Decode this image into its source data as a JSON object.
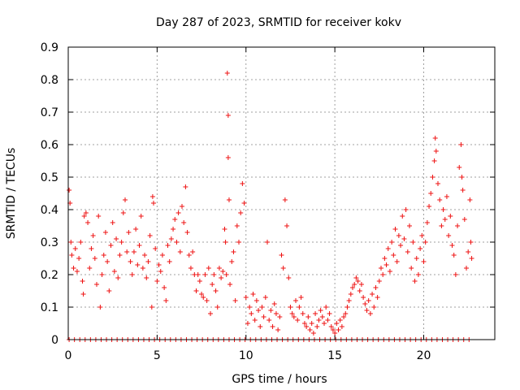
{
  "chart_data": {
    "type": "scatter",
    "title": "Day 287 of 2023, SRMTID for receiver kokv",
    "xlabel": "GPS time / hours",
    "ylabel": "SRMTID / TECUs",
    "xlim": [
      0,
      24
    ],
    "ylim": [
      0,
      0.9
    ],
    "xticks": [
      0,
      5,
      10,
      15,
      20
    ],
    "yticks": [
      0,
      0.1,
      0.2,
      0.3,
      0.4,
      0.5,
      0.6,
      0.7,
      0.8,
      0.9
    ],
    "xtick_labels": [
      "0",
      "5",
      "10",
      "15",
      "20"
    ],
    "ytick_labels": [
      "0",
      "0.1",
      "0.2",
      "0.3",
      "0.4",
      "0.5",
      "0.6",
      "0.7",
      "0.8",
      "0.9"
    ],
    "grid": true,
    "marker": "+",
    "color": "#ee1111",
    "series": [
      {
        "name": "SRMTID",
        "points": [
          [
            0.05,
            0.46
          ],
          [
            0.1,
            0.42
          ],
          [
            0.15,
            0.3
          ],
          [
            0.2,
            0.26
          ],
          [
            0.3,
            0.22
          ],
          [
            0.4,
            0.28
          ],
          [
            0.5,
            0.21
          ],
          [
            0.6,
            0.25
          ],
          [
            0.7,
            0.3
          ],
          [
            0.8,
            0.18
          ],
          [
            0.85,
            0.14
          ],
          [
            0.9,
            0.38
          ],
          [
            1.0,
            0.39
          ],
          [
            1.1,
            0.36
          ],
          [
            1.2,
            0.22
          ],
          [
            1.3,
            0.28
          ],
          [
            1.4,
            0.32
          ],
          [
            1.5,
            0.25
          ],
          [
            1.6,
            0.17
          ],
          [
            1.7,
            0.38
          ],
          [
            1.8,
            0.1
          ],
          [
            1.9,
            0.2
          ],
          [
            2.0,
            0.26
          ],
          [
            2.1,
            0.33
          ],
          [
            2.2,
            0.24
          ],
          [
            2.3,
            0.15
          ],
          [
            2.4,
            0.29
          ],
          [
            2.5,
            0.36
          ],
          [
            2.6,
            0.21
          ],
          [
            2.7,
            0.31
          ],
          [
            2.8,
            0.19
          ],
          [
            2.9,
            0.26
          ],
          [
            3.0,
            0.3
          ],
          [
            3.1,
            0.39
          ],
          [
            3.2,
            0.43
          ],
          [
            3.3,
            0.27
          ],
          [
            3.4,
            0.33
          ],
          [
            3.5,
            0.24
          ],
          [
            3.6,
            0.2
          ],
          [
            3.7,
            0.27
          ],
          [
            3.8,
            0.34
          ],
          [
            3.9,
            0.23
          ],
          [
            4.0,
            0.29
          ],
          [
            4.1,
            0.38
          ],
          [
            4.2,
            0.22
          ],
          [
            4.3,
            0.26
          ],
          [
            4.4,
            0.19
          ],
          [
            4.5,
            0.24
          ],
          [
            4.6,
            0.32
          ],
          [
            4.7,
            0.1
          ],
          [
            4.75,
            0.44
          ],
          [
            4.8,
            0.42
          ],
          [
            4.9,
            0.28
          ],
          [
            5.0,
            0.18
          ],
          [
            5.1,
            0.23
          ],
          [
            5.2,
            0.21
          ],
          [
            5.3,
            0.26
          ],
          [
            5.4,
            0.16
          ],
          [
            5.5,
            0.12
          ],
          [
            5.6,
            0.29
          ],
          [
            5.7,
            0.24
          ],
          [
            5.8,
            0.31
          ],
          [
            5.9,
            0.34
          ],
          [
            6.0,
            0.37
          ],
          [
            6.1,
            0.3
          ],
          [
            6.2,
            0.39
          ],
          [
            6.3,
            0.27
          ],
          [
            6.4,
            0.41
          ],
          [
            6.5,
            0.36
          ],
          [
            6.6,
            0.47
          ],
          [
            6.7,
            0.33
          ],
          [
            6.8,
            0.26
          ],
          [
            6.9,
            0.22
          ],
          [
            7.0,
            0.27
          ],
          [
            7.1,
            0.2
          ],
          [
            7.2,
            0.15
          ],
          [
            7.3,
            0.2
          ],
          [
            7.4,
            0.18
          ],
          [
            7.5,
            0.14
          ],
          [
            7.6,
            0.13
          ],
          [
            7.7,
            0.2
          ],
          [
            7.8,
            0.12
          ],
          [
            7.9,
            0.22
          ],
          [
            8.0,
            0.08
          ],
          [
            8.1,
            0.17
          ],
          [
            8.2,
            0.2
          ],
          [
            8.3,
            0.15
          ],
          [
            8.4,
            0.1
          ],
          [
            8.5,
            0.22
          ],
          [
            8.6,
            0.19
          ],
          [
            8.7,
            0.21
          ],
          [
            8.8,
            0.34
          ],
          [
            8.85,
            0.3
          ],
          [
            8.9,
            0.2
          ],
          [
            8.95,
            0.82
          ],
          [
            9.0,
            0.69
          ],
          [
            9.0,
            0.56
          ],
          [
            9.05,
            0.43
          ],
          [
            9.1,
            0.17
          ],
          [
            9.2,
            0.24
          ],
          [
            9.3,
            0.27
          ],
          [
            9.4,
            0.12
          ],
          [
            9.5,
            0.35
          ],
          [
            9.6,
            0.3
          ],
          [
            9.7,
            0.39
          ],
          [
            9.8,
            0.48
          ],
          [
            9.9,
            0.42
          ],
          [
            10.0,
            0.13
          ],
          [
            10.1,
            0.05
          ],
          [
            10.2,
            0.1
          ],
          [
            10.3,
            0.08
          ],
          [
            10.4,
            0.14
          ],
          [
            10.5,
            0.06
          ],
          [
            10.6,
            0.12
          ],
          [
            10.7,
            0.09
          ],
          [
            10.8,
            0.04
          ],
          [
            10.9,
            0.1
          ],
          [
            11.0,
            0.07
          ],
          [
            11.1,
            0.13
          ],
          [
            11.2,
            0.3
          ],
          [
            11.3,
            0.06
          ],
          [
            11.4,
            0.09
          ],
          [
            11.5,
            0.04
          ],
          [
            11.6,
            0.11
          ],
          [
            11.7,
            0.08
          ],
          [
            11.8,
            0.03
          ],
          [
            11.9,
            0.07
          ],
          [
            12.0,
            0.26
          ],
          [
            12.1,
            0.22
          ],
          [
            12.2,
            0.43
          ],
          [
            12.3,
            0.35
          ],
          [
            12.4,
            0.19
          ],
          [
            12.5,
            0.1
          ],
          [
            12.6,
            0.08
          ],
          [
            12.7,
            0.07
          ],
          [
            12.8,
            0.12
          ],
          [
            12.9,
            0.06
          ],
          [
            13.0,
            0.1
          ],
          [
            13.1,
            0.13
          ],
          [
            13.2,
            0.08
          ],
          [
            13.3,
            0.05
          ],
          [
            13.4,
            0.04
          ],
          [
            13.5,
            0.07
          ],
          [
            13.6,
            0.03
          ],
          [
            13.7,
            0.05
          ],
          [
            13.8,
            0.02
          ],
          [
            13.9,
            0.08
          ],
          [
            14.0,
            0.04
          ],
          [
            14.1,
            0.06
          ],
          [
            14.2,
            0.09
          ],
          [
            14.3,
            0.07
          ],
          [
            14.4,
            0.05
          ],
          [
            14.5,
            0.1
          ],
          [
            14.6,
            0.06
          ],
          [
            14.7,
            0.08
          ],
          [
            14.8,
            0.04
          ],
          [
            14.9,
            0.03
          ],
          [
            15.0,
            0.02
          ],
          [
            15.1,
            0.05
          ],
          [
            15.2,
            0.03
          ],
          [
            15.3,
            0.06
          ],
          [
            15.4,
            0.04
          ],
          [
            15.5,
            0.07
          ],
          [
            15.6,
            0.08
          ],
          [
            15.7,
            0.1
          ],
          [
            15.8,
            0.12
          ],
          [
            15.9,
            0.14
          ],
          [
            16.0,
            0.16
          ],
          [
            16.1,
            0.17
          ],
          [
            16.2,
            0.19
          ],
          [
            16.3,
            0.18
          ],
          [
            16.4,
            0.15
          ],
          [
            16.5,
            0.17
          ],
          [
            16.6,
            0.13
          ],
          [
            16.7,
            0.11
          ],
          [
            16.8,
            0.09
          ],
          [
            16.9,
            0.12
          ],
          [
            17.0,
            0.08
          ],
          [
            17.1,
            0.14
          ],
          [
            17.2,
            0.1
          ],
          [
            17.3,
            0.16
          ],
          [
            17.4,
            0.13
          ],
          [
            17.5,
            0.18
          ],
          [
            17.6,
            0.22
          ],
          [
            17.7,
            0.2
          ],
          [
            17.8,
            0.25
          ],
          [
            17.9,
            0.23
          ],
          [
            18.0,
            0.28
          ],
          [
            18.1,
            0.21
          ],
          [
            18.2,
            0.3
          ],
          [
            18.3,
            0.26
          ],
          [
            18.4,
            0.34
          ],
          [
            18.5,
            0.24
          ],
          [
            18.6,
            0.32
          ],
          [
            18.7,
            0.29
          ],
          [
            18.8,
            0.38
          ],
          [
            18.9,
            0.31
          ],
          [
            19.0,
            0.4
          ],
          [
            19.1,
            0.27
          ],
          [
            19.2,
            0.35
          ],
          [
            19.3,
            0.22
          ],
          [
            19.4,
            0.3
          ],
          [
            19.5,
            0.18
          ],
          [
            19.6,
            0.25
          ],
          [
            19.7,
            0.2
          ],
          [
            19.8,
            0.28
          ],
          [
            19.9,
            0.32
          ],
          [
            20.0,
            0.24
          ],
          [
            20.1,
            0.3
          ],
          [
            20.2,
            0.36
          ],
          [
            20.3,
            0.41
          ],
          [
            20.4,
            0.45
          ],
          [
            20.5,
            0.5
          ],
          [
            20.6,
            0.55
          ],
          [
            20.65,
            0.62
          ],
          [
            20.7,
            0.58
          ],
          [
            20.8,
            0.48
          ],
          [
            20.9,
            0.43
          ],
          [
            21.0,
            0.35
          ],
          [
            21.1,
            0.4
          ],
          [
            21.2,
            0.37
          ],
          [
            21.3,
            0.44
          ],
          [
            21.4,
            0.32
          ],
          [
            21.5,
            0.38
          ],
          [
            21.6,
            0.29
          ],
          [
            21.7,
            0.26
          ],
          [
            21.8,
            0.2
          ],
          [
            21.9,
            0.35
          ],
          [
            22.0,
            0.53
          ],
          [
            22.1,
            0.6
          ],
          [
            22.15,
            0.5
          ],
          [
            22.2,
            0.46
          ],
          [
            22.3,
            0.37
          ],
          [
            22.4,
            0.22
          ],
          [
            22.5,
            0.27
          ],
          [
            22.6,
            0.43
          ],
          [
            22.65,
            0.3
          ],
          [
            22.7,
            0.25
          ]
        ]
      }
    ]
  }
}
